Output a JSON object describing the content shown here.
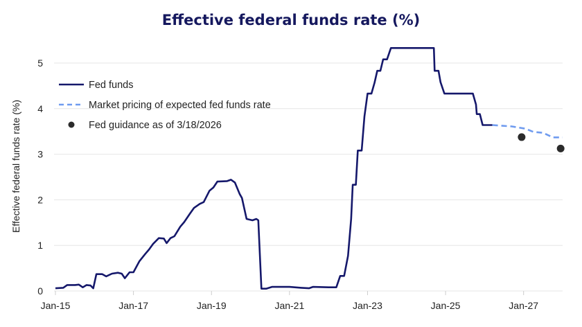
{
  "chart_data": {
    "type": "line",
    "title": "Effective federal funds rate (%)",
    "xlabel": "",
    "ylabel": "Effective federal funds rate (%)",
    "xlim": [
      2015.0,
      2028.0
    ],
    "ylim": [
      0,
      5.5
    ],
    "x_ticks": [
      {
        "value": 2015,
        "label": "Jan-15"
      },
      {
        "value": 2017,
        "label": "Jan-17"
      },
      {
        "value": 2019,
        "label": "Jan-19"
      },
      {
        "value": 2021,
        "label": "Jan-21"
      },
      {
        "value": 2023,
        "label": "Jan-23"
      },
      {
        "value": 2025,
        "label": "Jan-25"
      },
      {
        "value": 2027,
        "label": "Jan-27"
      }
    ],
    "y_ticks": [
      0,
      1,
      2,
      3,
      4,
      5
    ],
    "grid": "horizontal",
    "legend_position": "top-left",
    "colors": {
      "fed_funds": "#15186b",
      "market": "#6f9bef",
      "guidance": "#2b2b2b",
      "grid": "#e6e6e6",
      "title": "#15185e"
    },
    "series": [
      {
        "name": "Fed funds",
        "style": "solid",
        "points": [
          [
            2015.0,
            0.06
          ],
          [
            2015.2,
            0.07
          ],
          [
            2015.3,
            0.13
          ],
          [
            2015.5,
            0.13
          ],
          [
            2015.6,
            0.14
          ],
          [
            2015.7,
            0.08
          ],
          [
            2015.8,
            0.13
          ],
          [
            2015.9,
            0.12
          ],
          [
            2015.97,
            0.06
          ],
          [
            2016.05,
            0.37
          ],
          [
            2016.2,
            0.37
          ],
          [
            2016.3,
            0.32
          ],
          [
            2016.45,
            0.38
          ],
          [
            2016.6,
            0.4
          ],
          [
            2016.7,
            0.38
          ],
          [
            2016.78,
            0.28
          ],
          [
            2016.9,
            0.41
          ],
          [
            2017.0,
            0.41
          ],
          [
            2017.15,
            0.65
          ],
          [
            2017.3,
            0.81
          ],
          [
            2017.4,
            0.91
          ],
          [
            2017.5,
            1.03
          ],
          [
            2017.65,
            1.16
          ],
          [
            2017.78,
            1.15
          ],
          [
            2017.85,
            1.05
          ],
          [
            2017.95,
            1.16
          ],
          [
            2018.05,
            1.2
          ],
          [
            2018.2,
            1.41
          ],
          [
            2018.3,
            1.51
          ],
          [
            2018.45,
            1.7
          ],
          [
            2018.55,
            1.82
          ],
          [
            2018.7,
            1.91
          ],
          [
            2018.8,
            1.95
          ],
          [
            2018.95,
            2.2
          ],
          [
            2019.05,
            2.27
          ],
          [
            2019.15,
            2.4
          ],
          [
            2019.4,
            2.41
          ],
          [
            2019.5,
            2.44
          ],
          [
            2019.6,
            2.38
          ],
          [
            2019.72,
            2.13
          ],
          [
            2019.78,
            2.04
          ],
          [
            2019.9,
            1.58
          ],
          [
            2020.05,
            1.55
          ],
          [
            2020.15,
            1.58
          ],
          [
            2020.2,
            1.55
          ],
          [
            2020.28,
            0.05
          ],
          [
            2020.4,
            0.05
          ],
          [
            2020.55,
            0.09
          ],
          [
            2021.0,
            0.09
          ],
          [
            2021.3,
            0.07
          ],
          [
            2021.5,
            0.06
          ],
          [
            2021.6,
            0.09
          ],
          [
            2022.0,
            0.08
          ],
          [
            2022.2,
            0.08
          ],
          [
            2022.3,
            0.33
          ],
          [
            2022.4,
            0.33
          ],
          [
            2022.5,
            0.77
          ],
          [
            2022.58,
            1.58
          ],
          [
            2022.62,
            2.33
          ],
          [
            2022.7,
            2.33
          ],
          [
            2022.75,
            3.08
          ],
          [
            2022.85,
            3.08
          ],
          [
            2022.92,
            3.83
          ],
          [
            2023.0,
            4.33
          ],
          [
            2023.1,
            4.33
          ],
          [
            2023.18,
            4.57
          ],
          [
            2023.25,
            4.83
          ],
          [
            2023.33,
            4.83
          ],
          [
            2023.4,
            5.08
          ],
          [
            2023.5,
            5.08
          ],
          [
            2023.6,
            5.33
          ],
          [
            2024.7,
            5.33
          ],
          [
            2024.72,
            4.83
          ],
          [
            2024.82,
            4.83
          ],
          [
            2024.87,
            4.58
          ],
          [
            2024.97,
            4.33
          ],
          [
            2025.7,
            4.33
          ],
          [
            2025.78,
            4.09
          ],
          [
            2025.8,
            3.88
          ],
          [
            2025.88,
            3.88
          ],
          [
            2025.95,
            3.64
          ],
          [
            2026.2,
            3.64
          ]
        ]
      },
      {
        "name": "Market pricing of expected fed funds rate",
        "style": "dashed",
        "points": [
          [
            2026.2,
            3.64
          ],
          [
            2026.7,
            3.61
          ],
          [
            2027.05,
            3.56
          ],
          [
            2027.25,
            3.49
          ],
          [
            2027.5,
            3.47
          ],
          [
            2027.75,
            3.37
          ],
          [
            2028.0,
            3.37
          ]
        ]
      },
      {
        "name": "Fed guidance as of 3/18/2026",
        "style": "markers",
        "points": [
          [
            2026.95,
            3.375
          ],
          [
            2027.95,
            3.125
          ]
        ]
      }
    ]
  }
}
